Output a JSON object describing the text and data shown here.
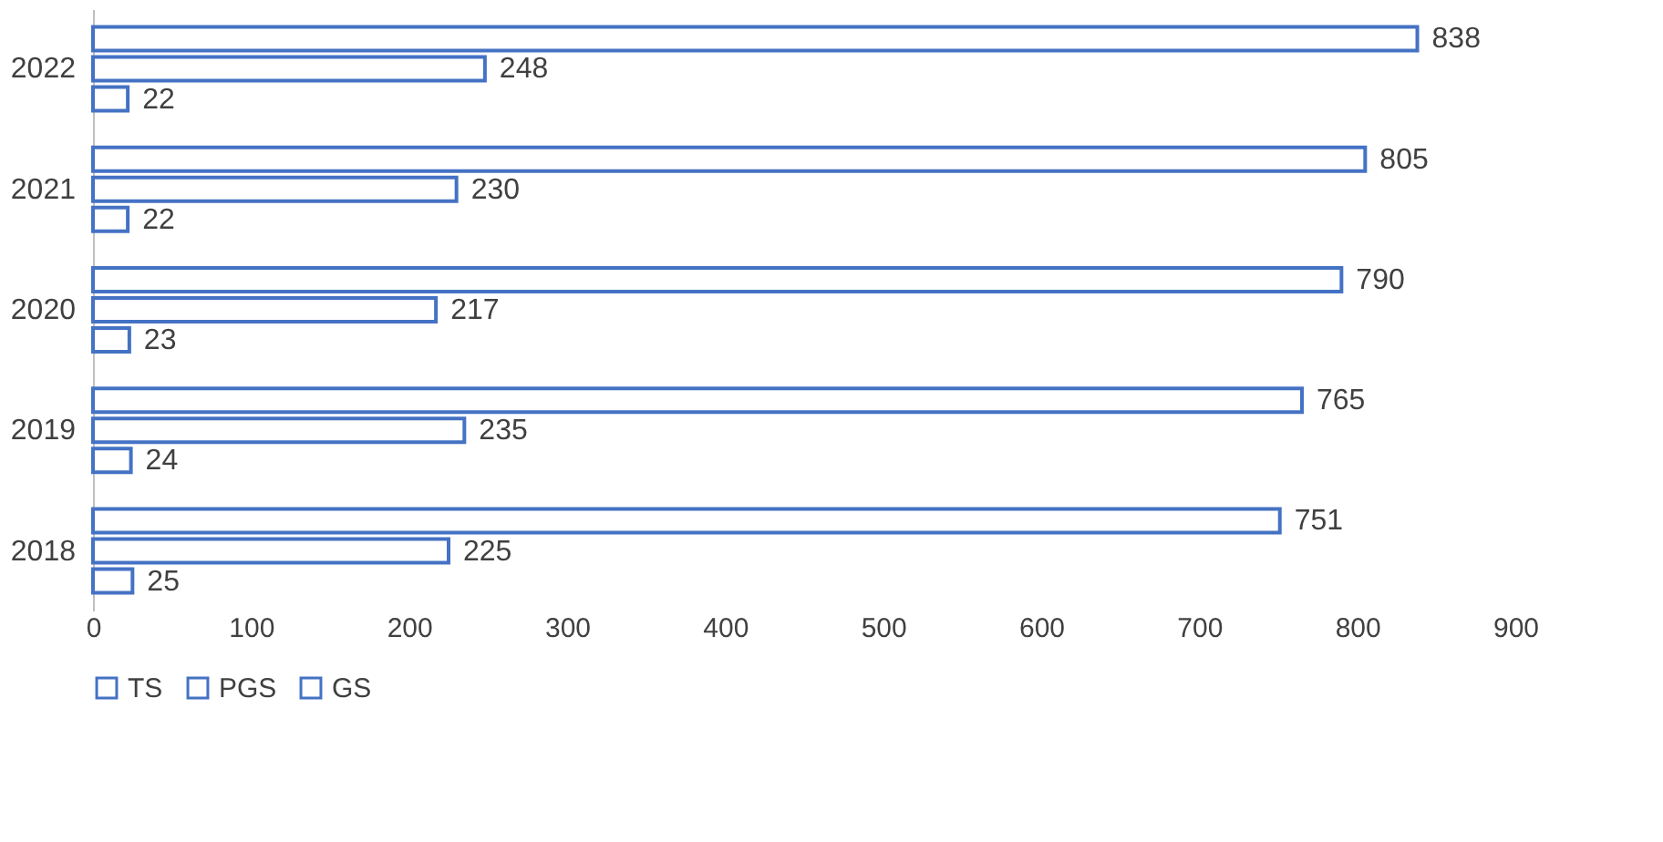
{
  "chart_data": {
    "type": "bar",
    "orientation": "horizontal",
    "categories": [
      "2022",
      "2021",
      "2020",
      "2019",
      "2018"
    ],
    "series": [
      {
        "name": "TS",
        "color": "#4472c4",
        "values": [
          838,
          805,
          790,
          765,
          751
        ]
      },
      {
        "name": "PGS",
        "color": "#4472c4",
        "values": [
          248,
          230,
          217,
          235,
          225
        ]
      },
      {
        "name": "GS",
        "color": "#4472c4",
        "values": [
          22,
          22,
          23,
          24,
          25
        ]
      }
    ],
    "xlim": [
      0,
      900
    ],
    "xticks": [
      0,
      100,
      200,
      300,
      400,
      500,
      600,
      700,
      800,
      900
    ],
    "grid": false,
    "legend": "bottom",
    "data_labels": true
  }
}
